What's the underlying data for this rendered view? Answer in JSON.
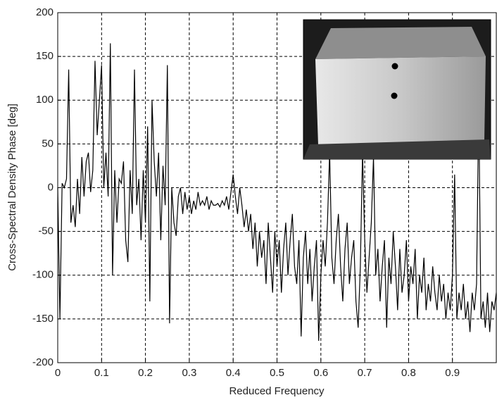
{
  "chart_data": {
    "type": "line",
    "xlabel": "Reduced Frequency",
    "ylabel": "Cross-Spectral Density Phase [deg]",
    "color": "#000000",
    "grid": true,
    "xlim": [
      0,
      1
    ],
    "xticks": [
      0,
      0.1,
      0.2,
      0.3,
      0.4,
      0.5,
      0.6,
      0.7,
      0.8,
      0.9
    ],
    "ylim": [
      -200,
      200
    ],
    "yticks": [
      -200,
      -150,
      -100,
      -50,
      0,
      50,
      100,
      150,
      200
    ],
    "x": [
      0,
      0.005,
      0.01,
      0.015,
      0.02,
      0.025,
      0.03,
      0.035,
      0.04,
      0.045,
      0.05,
      0.055,
      0.06,
      0.065,
      0.07,
      0.075,
      0.08,
      0.085,
      0.09,
      0.095,
      0.1,
      0.105,
      0.11,
      0.115,
      0.12,
      0.125,
      0.13,
      0.135,
      0.14,
      0.145,
      0.15,
      0.155,
      0.16,
      0.165,
      0.17,
      0.175,
      0.18,
      0.185,
      0.19,
      0.195,
      0.2,
      0.205,
      0.21,
      0.215,
      0.22,
      0.225,
      0.23,
      0.235,
      0.24,
      0.245,
      0.25,
      0.255,
      0.26,
      0.265,
      0.27,
      0.275,
      0.28,
      0.285,
      0.29,
      0.295,
      0.3,
      0.305,
      0.31,
      0.315,
      0.32,
      0.325,
      0.33,
      0.335,
      0.34,
      0.345,
      0.35,
      0.355,
      0.36,
      0.365,
      0.37,
      0.375,
      0.38,
      0.385,
      0.39,
      0.395,
      0.4,
      0.405,
      0.41,
      0.415,
      0.42,
      0.425,
      0.43,
      0.435,
      0.44,
      0.445,
      0.45,
      0.455,
      0.46,
      0.465,
      0.47,
      0.475,
      0.48,
      0.485,
      0.49,
      0.495,
      0.5,
      0.505,
      0.51,
      0.515,
      0.52,
      0.525,
      0.53,
      0.535,
      0.54,
      0.545,
      0.55,
      0.555,
      0.56,
      0.565,
      0.57,
      0.575,
      0.58,
      0.585,
      0.59,
      0.595,
      0.6,
      0.605,
      0.61,
      0.615,
      0.62,
      0.625,
      0.63,
      0.635,
      0.64,
      0.645,
      0.65,
      0.655,
      0.66,
      0.665,
      0.67,
      0.675,
      0.68,
      0.685,
      0.69,
      0.695,
      0.7,
      0.705,
      0.71,
      0.715,
      0.72,
      0.725,
      0.73,
      0.735,
      0.74,
      0.745,
      0.75,
      0.755,
      0.76,
      0.765,
      0.77,
      0.775,
      0.78,
      0.785,
      0.79,
      0.795,
      0.8,
      0.805,
      0.81,
      0.815,
      0.82,
      0.825,
      0.83,
      0.835,
      0.84,
      0.845,
      0.85,
      0.855,
      0.86,
      0.865,
      0.87,
      0.875,
      0.88,
      0.885,
      0.89,
      0.895,
      0.9,
      0.905,
      0.91,
      0.915,
      0.92,
      0.925,
      0.93,
      0.935,
      0.94,
      0.945,
      0.95,
      0.955,
      0.96,
      0.965,
      0.97,
      0.975,
      0.98,
      0.985,
      0.99,
      0.995,
      1
    ],
    "values": [
      0,
      -150,
      5,
      0,
      10,
      135,
      -40,
      -20,
      -45,
      10,
      -30,
      35,
      -10,
      30,
      40,
      -5,
      20,
      145,
      60,
      100,
      140,
      0,
      40,
      -10,
      165,
      -100,
      20,
      -40,
      10,
      5,
      30,
      -60,
      -85,
      20,
      -30,
      135,
      -20,
      10,
      -60,
      20,
      -40,
      70,
      -130,
      100,
      30,
      -10,
      40,
      -60,
      25,
      -20,
      140,
      -155,
      0,
      -40,
      -55,
      -10,
      0,
      -30,
      -5,
      -25,
      -10,
      -30,
      -15,
      -25,
      -5,
      -20,
      -15,
      -20,
      -10,
      -25,
      -15,
      -20,
      -20,
      -18,
      -22,
      -15,
      -20,
      -10,
      -25,
      -5,
      15,
      -10,
      -30,
      0,
      -20,
      -45,
      -25,
      -50,
      -30,
      -70,
      -40,
      -90,
      -50,
      -80,
      -60,
      -110,
      -40,
      -80,
      -120,
      -50,
      -90,
      -60,
      -120,
      -70,
      -40,
      -100,
      -60,
      -30,
      -90,
      -110,
      -60,
      -170,
      -80,
      -50,
      -110,
      -70,
      -130,
      -90,
      -60,
      -175,
      -100,
      -60,
      -90,
      -40,
      40,
      -80,
      -110,
      -60,
      -30,
      -90,
      -130,
      -70,
      -40,
      -110,
      -80,
      -60,
      -130,
      -160,
      -90,
      40,
      -60,
      -120,
      -80,
      -40,
      35,
      -100,
      -70,
      -130,
      -90,
      -60,
      -160,
      -80,
      -110,
      -50,
      -90,
      -140,
      -70,
      -120,
      -100,
      -60,
      -130,
      -90,
      -110,
      -70,
      -150,
      -100,
      -120,
      -80,
      -140,
      -110,
      -130,
      -90,
      -120,
      -140,
      -100,
      -130,
      -110,
      -150,
      -120,
      -140,
      -100,
      15,
      -150,
      -120,
      -140,
      -110,
      -150,
      -130,
      -165,
      -120,
      -140,
      -110,
      100,
      -150,
      -130,
      -160,
      -120,
      -165,
      -130,
      -140,
      -120
    ]
  }
}
